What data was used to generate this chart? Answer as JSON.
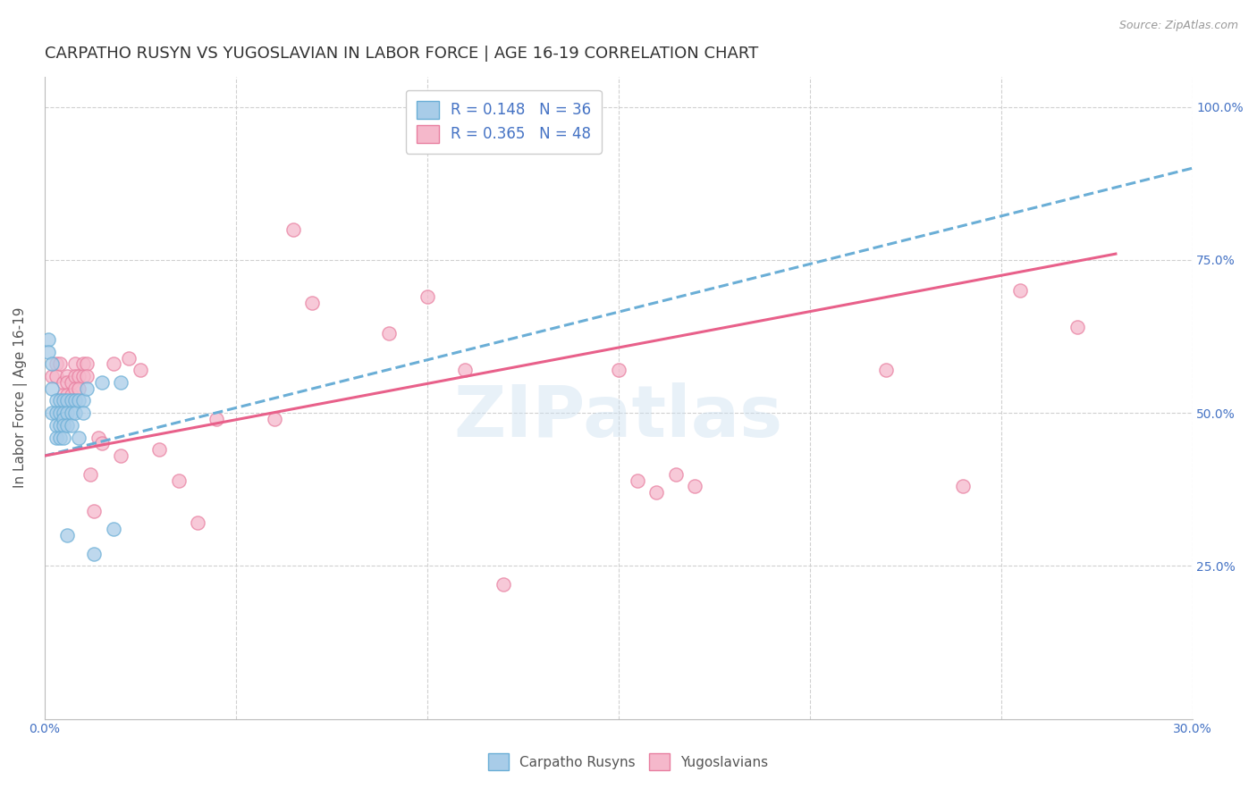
{
  "title": "CARPATHO RUSYN VS YUGOSLAVIAN IN LABOR FORCE | AGE 16-19 CORRELATION CHART",
  "source": "Source: ZipAtlas.com",
  "ylabel": "In Labor Force | Age 16-19",
  "xlim": [
    0.0,
    0.3
  ],
  "ylim": [
    0.0,
    1.05
  ],
  "xticks": [
    0.0,
    0.05,
    0.1,
    0.15,
    0.2,
    0.25,
    0.3
  ],
  "xticklabels": [
    "0.0%",
    "",
    "",
    "",
    "",
    "",
    "30.0%"
  ],
  "yticks": [
    0.0,
    0.25,
    0.5,
    0.75,
    1.0
  ],
  "yticklabels": [
    "",
    "25.0%",
    "50.0%",
    "75.0%",
    "100.0%"
  ],
  "legend1_r": "0.148",
  "legend1_n": "36",
  "legend2_r": "0.365",
  "legend2_n": "48",
  "color_blue": "#a8cce8",
  "color_pink": "#f5b8cb",
  "color_blue_edge": "#6aaed6",
  "color_pink_edge": "#e87fa0",
  "color_blue_line": "#6aaed6",
  "color_pink_line": "#e8608a",
  "color_blue_text": "#4472c4",
  "watermark": "ZIPatlas",
  "scatter_blue_x": [
    0.001,
    0.001,
    0.002,
    0.002,
    0.002,
    0.003,
    0.003,
    0.003,
    0.003,
    0.004,
    0.004,
    0.004,
    0.004,
    0.005,
    0.005,
    0.005,
    0.005,
    0.005,
    0.006,
    0.006,
    0.006,
    0.006,
    0.007,
    0.007,
    0.007,
    0.008,
    0.008,
    0.009,
    0.009,
    0.01,
    0.01,
    0.011,
    0.013,
    0.015,
    0.018,
    0.02
  ],
  "scatter_blue_y": [
    0.62,
    0.6,
    0.58,
    0.54,
    0.5,
    0.52,
    0.5,
    0.48,
    0.46,
    0.52,
    0.5,
    0.48,
    0.46,
    0.52,
    0.5,
    0.49,
    0.48,
    0.46,
    0.52,
    0.5,
    0.48,
    0.3,
    0.52,
    0.5,
    0.48,
    0.52,
    0.5,
    0.52,
    0.46,
    0.52,
    0.5,
    0.54,
    0.27,
    0.55,
    0.31,
    0.55
  ],
  "scatter_pink_x": [
    0.002,
    0.003,
    0.003,
    0.004,
    0.005,
    0.005,
    0.006,
    0.006,
    0.006,
    0.007,
    0.007,
    0.008,
    0.008,
    0.008,
    0.009,
    0.009,
    0.01,
    0.01,
    0.011,
    0.011,
    0.012,
    0.013,
    0.014,
    0.015,
    0.018,
    0.02,
    0.022,
    0.025,
    0.03,
    0.035,
    0.04,
    0.045,
    0.06,
    0.065,
    0.07,
    0.09,
    0.1,
    0.11,
    0.12,
    0.15,
    0.155,
    0.16,
    0.165,
    0.17,
    0.22,
    0.24,
    0.255,
    0.27
  ],
  "scatter_pink_y": [
    0.56,
    0.58,
    0.56,
    0.58,
    0.55,
    0.53,
    0.56,
    0.55,
    0.53,
    0.55,
    0.53,
    0.58,
    0.56,
    0.54,
    0.56,
    0.54,
    0.58,
    0.56,
    0.58,
    0.56,
    0.4,
    0.34,
    0.46,
    0.45,
    0.58,
    0.43,
    0.59,
    0.57,
    0.44,
    0.39,
    0.32,
    0.49,
    0.49,
    0.8,
    0.68,
    0.63,
    0.69,
    0.57,
    0.22,
    0.57,
    0.39,
    0.37,
    0.4,
    0.38,
    0.57,
    0.38,
    0.7,
    0.64
  ],
  "blue_line_x": [
    0.0,
    0.3
  ],
  "blue_line_y": [
    0.43,
    0.9
  ],
  "pink_line_x": [
    0.0,
    0.28
  ],
  "pink_line_y": [
    0.43,
    0.76
  ],
  "grid_color": "#d0d0d0",
  "background_color": "#ffffff",
  "title_fontsize": 13,
  "label_fontsize": 11
}
